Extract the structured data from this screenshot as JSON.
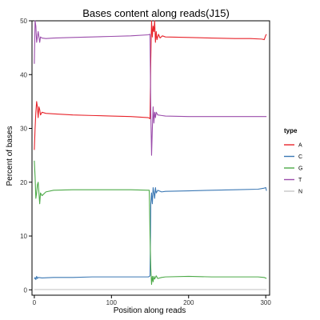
{
  "chart_data": {
    "type": "line",
    "title": "Bases content along reads(J15)",
    "xlabel": "Position along reads",
    "ylabel": "Percent of bases",
    "xlim": [
      -3,
      305
    ],
    "ylim": [
      -1,
      50
    ],
    "x_ticks": [
      0,
      100,
      200,
      300
    ],
    "x_tick_labels": [
      "0",
      "100",
      "200",
      "300"
    ],
    "y_ticks": [
      0,
      10,
      20,
      30,
      40,
      50
    ],
    "y_tick_labels": [
      "0",
      "10",
      "20",
      "30",
      "40",
      "50"
    ],
    "grid": false,
    "legend": {
      "title": "type",
      "placement": "right"
    },
    "series": [
      {
        "name": "A",
        "color": "#e8242b",
        "points": [
          [
            0,
            26
          ],
          [
            1,
            30
          ],
          [
            2,
            33
          ],
          [
            3,
            35
          ],
          [
            4,
            34
          ],
          [
            5,
            32
          ],
          [
            6,
            34
          ],
          [
            7,
            33.5
          ],
          [
            8,
            32.5
          ],
          [
            10,
            33
          ],
          [
            15,
            32.8
          ],
          [
            25,
            32.7
          ],
          [
            50,
            32.5
          ],
          [
            75,
            32.4
          ],
          [
            100,
            32.3
          ],
          [
            125,
            32.2
          ],
          [
            148,
            32.0
          ],
          [
            150,
            31.8
          ],
          [
            151,
            43
          ],
          [
            152,
            50
          ],
          [
            153,
            47
          ],
          [
            154,
            49
          ],
          [
            155,
            48
          ],
          [
            156,
            50
          ],
          [
            157,
            46
          ],
          [
            158,
            48
          ],
          [
            159,
            46.5
          ],
          [
            161,
            47.5
          ],
          [
            163,
            46.8
          ],
          [
            166,
            47.2
          ],
          [
            170,
            47
          ],
          [
            200,
            46.9
          ],
          [
            230,
            46.8
          ],
          [
            260,
            46.7
          ],
          [
            280,
            46.7
          ],
          [
            295,
            46.6
          ],
          [
            298,
            46.5
          ],
          [
            300,
            47.3
          ],
          [
            301,
            47.5
          ]
        ]
      },
      {
        "name": "C",
        "color": "#3b78b4",
        "points": [
          [
            0,
            2
          ],
          [
            1,
            2.3
          ],
          [
            2,
            1.9
          ],
          [
            3,
            2.5
          ],
          [
            4,
            2.1
          ],
          [
            5,
            2.3
          ],
          [
            10,
            2.2
          ],
          [
            25,
            2.3
          ],
          [
            50,
            2.3
          ],
          [
            75,
            2.4
          ],
          [
            100,
            2.4
          ],
          [
            125,
            2.4
          ],
          [
            148,
            2.4
          ],
          [
            150,
            2.6
          ],
          [
            151,
            16
          ],
          [
            152,
            18
          ],
          [
            153,
            16
          ],
          [
            154,
            19
          ],
          [
            155,
            18
          ],
          [
            156,
            17
          ],
          [
            157,
            19
          ],
          [
            158,
            18
          ],
          [
            160,
            18.5
          ],
          [
            165,
            18.2
          ],
          [
            170,
            18.3
          ],
          [
            200,
            18.4
          ],
          [
            230,
            18.5
          ],
          [
            260,
            18.6
          ],
          [
            290,
            18.7
          ],
          [
            298,
            18.9
          ],
          [
            300,
            19
          ],
          [
            301,
            18.4
          ]
        ]
      },
      {
        "name": "G",
        "color": "#4daa48",
        "points": [
          [
            0,
            24
          ],
          [
            1,
            21
          ],
          [
            2,
            17
          ],
          [
            3,
            18
          ],
          [
            4,
            19.5
          ],
          [
            5,
            20
          ],
          [
            6,
            18
          ],
          [
            7,
            16
          ],
          [
            8,
            18
          ],
          [
            10,
            17.5
          ],
          [
            15,
            18.2
          ],
          [
            25,
            18.5
          ],
          [
            50,
            18.6
          ],
          [
            75,
            18.6
          ],
          [
            100,
            18.6
          ],
          [
            125,
            18.6
          ],
          [
            148,
            18.5
          ],
          [
            149,
            18.5
          ],
          [
            150,
            10
          ],
          [
            151,
            4
          ],
          [
            152,
            1
          ],
          [
            153,
            2.5
          ],
          [
            154,
            1.5
          ],
          [
            155,
            2.5
          ],
          [
            156,
            2
          ],
          [
            158,
            2.6
          ],
          [
            160,
            2.1
          ],
          [
            165,
            2.3
          ],
          [
            170,
            2.4
          ],
          [
            200,
            2.5
          ],
          [
            230,
            2.4
          ],
          [
            260,
            2.4
          ],
          [
            290,
            2.4
          ],
          [
            298,
            2.3
          ],
          [
            301,
            2.1
          ]
        ]
      },
      {
        "name": "T",
        "color": "#9b4dab",
        "points": [
          [
            0,
            42
          ],
          [
            1,
            50
          ],
          [
            2,
            49
          ],
          [
            3,
            46
          ],
          [
            4,
            47
          ],
          [
            5,
            48
          ],
          [
            6,
            47
          ],
          [
            7,
            46
          ],
          [
            8,
            47
          ],
          [
            10,
            46.8
          ],
          [
            15,
            46.7
          ],
          [
            25,
            46.8
          ],
          [
            50,
            46.9
          ],
          [
            75,
            47
          ],
          [
            100,
            47.1
          ],
          [
            125,
            47.2
          ],
          [
            148,
            47.4
          ],
          [
            150,
            47.5
          ],
          [
            151,
            33
          ],
          [
            152,
            25
          ],
          [
            153,
            30
          ],
          [
            154,
            34
          ],
          [
            155,
            31
          ],
          [
            156,
            33
          ],
          [
            157,
            32
          ],
          [
            158,
            33
          ],
          [
            160,
            32.5
          ],
          [
            165,
            32.4
          ],
          [
            170,
            32.3
          ],
          [
            200,
            32.2
          ],
          [
            230,
            32.2
          ],
          [
            260,
            32.2
          ],
          [
            290,
            32.2
          ],
          [
            301,
            32.2
          ]
        ]
      },
      {
        "name": "N",
        "color": "#c8c8c8",
        "points": [
          [
            0,
            0.05
          ],
          [
            301,
            0.05
          ]
        ]
      }
    ]
  }
}
